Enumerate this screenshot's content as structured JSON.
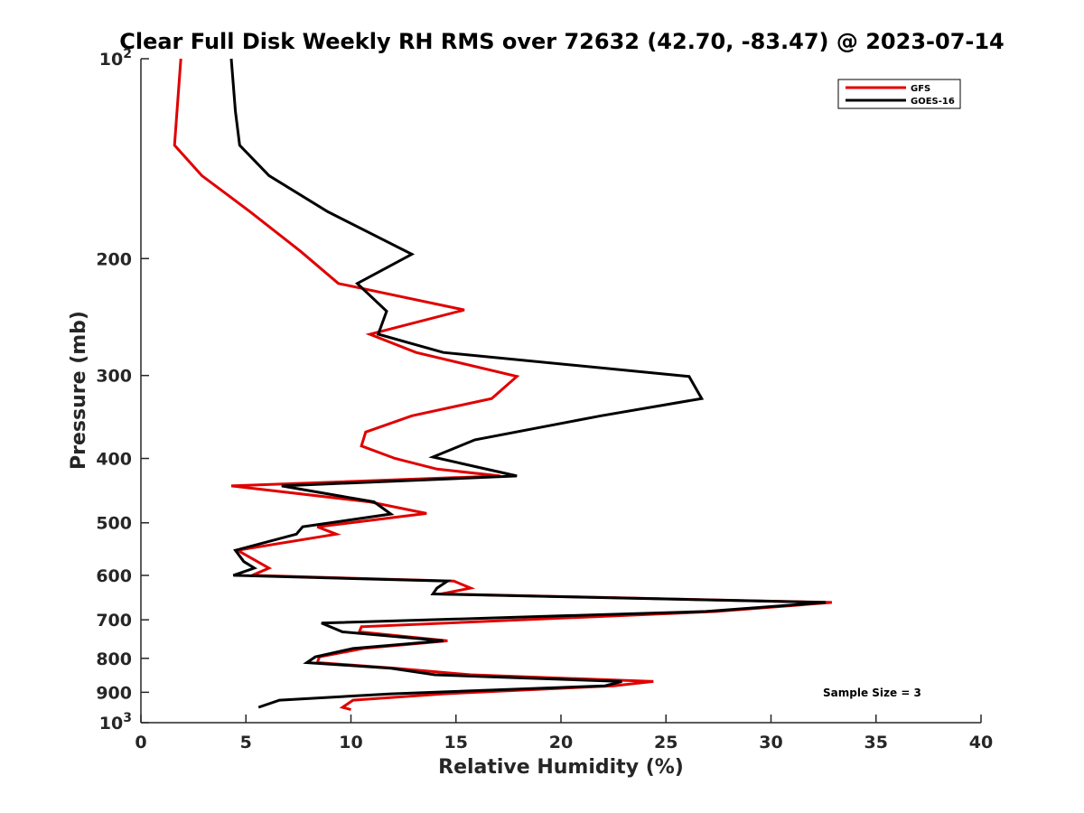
{
  "chart_data": {
    "type": "line",
    "title": "Clear Full Disk Weekly RH RMS over 72632 (42.70, -83.47) @ 2023-07-14",
    "xlabel": "Relative Humidity (%)",
    "ylabel": "Pressure (mb)",
    "xlim": [
      0,
      40
    ],
    "ylim": [
      100,
      1000
    ],
    "y_scale": "log",
    "y_reversed": true,
    "grid": false,
    "legend_position": "top-right",
    "x_ticks": [
      "0",
      "5",
      "10",
      "15",
      "20",
      "25",
      "30",
      "35",
      "40"
    ],
    "y_ticks": [
      {
        "value": 100,
        "base": "10",
        "exp": "2"
      },
      {
        "value": 200,
        "label": "200"
      },
      {
        "value": 300,
        "label": "300"
      },
      {
        "value": 400,
        "label": "400"
      },
      {
        "value": 500,
        "label": "500"
      },
      {
        "value": 600,
        "label": "600"
      },
      {
        "value": 700,
        "label": "700"
      },
      {
        "value": 800,
        "label": "800"
      },
      {
        "value": 900,
        "label": "900"
      },
      {
        "value": 1000,
        "base": "10",
        "exp": "3"
      }
    ],
    "series": [
      {
        "name": "GFS",
        "color": "#e00000",
        "points": [
          [
            1.9,
            100
          ],
          [
            1.6,
            135
          ],
          [
            2.9,
            150
          ],
          [
            5.2,
            170
          ],
          [
            7.6,
            195
          ],
          [
            9.4,
            218
          ],
          [
            15.4,
            239
          ],
          [
            10.9,
            260
          ],
          [
            13.1,
            277
          ],
          [
            17.9,
            301
          ],
          [
            16.7,
            325
          ],
          [
            12.9,
            345
          ],
          [
            10.7,
            365
          ],
          [
            10.5,
            383
          ],
          [
            12.1,
            400
          ],
          [
            14.1,
            415
          ],
          [
            17.1,
            425
          ],
          [
            4.3,
            440
          ],
          [
            10.9,
            465
          ],
          [
            13.6,
            484
          ],
          [
            8.4,
            507
          ],
          [
            9.3,
            520
          ],
          [
            4.6,
            550
          ],
          [
            6.1,
            585
          ],
          [
            5.3,
            600
          ],
          [
            14.9,
            612
          ],
          [
            15.7,
            627
          ],
          [
            14.3,
            640
          ],
          [
            32.9,
            659
          ],
          [
            27.4,
            680
          ],
          [
            10.5,
            717
          ],
          [
            10.4,
            730
          ],
          [
            14.6,
            753
          ],
          [
            10.6,
            773
          ],
          [
            8.5,
            796
          ],
          [
            8.4,
            812
          ],
          [
            12.1,
            828
          ],
          [
            15.7,
            847
          ],
          [
            24.4,
            867
          ],
          [
            22.5,
            880
          ],
          [
            14.4,
            905
          ],
          [
            10.1,
            925
          ],
          [
            9.6,
            948
          ],
          [
            10.0,
            956
          ]
        ]
      },
      {
        "name": "GOES-16",
        "color": "#000000",
        "points": [
          [
            4.3,
            100
          ],
          [
            4.5,
            120
          ],
          [
            4.7,
            135
          ],
          [
            6.1,
            150
          ],
          [
            8.9,
            170
          ],
          [
            12.9,
            197
          ],
          [
            10.3,
            218
          ],
          [
            11.7,
            240
          ],
          [
            11.3,
            260
          ],
          [
            14.4,
            277
          ],
          [
            26.1,
            301
          ],
          [
            26.7,
            325
          ],
          [
            21.9,
            345
          ],
          [
            15.9,
            375
          ],
          [
            13.9,
            398
          ],
          [
            17.9,
            425
          ],
          [
            6.7,
            440
          ],
          [
            11.1,
            465
          ],
          [
            11.9,
            485
          ],
          [
            7.7,
            507
          ],
          [
            7.4,
            520
          ],
          [
            4.5,
            550
          ],
          [
            4.9,
            572
          ],
          [
            5.4,
            585
          ],
          [
            4.4,
            600
          ],
          [
            14.6,
            612
          ],
          [
            14.1,
            627
          ],
          [
            13.9,
            640
          ],
          [
            32.6,
            659
          ],
          [
            26.9,
            680
          ],
          [
            8.6,
            708
          ],
          [
            9.6,
            730
          ],
          [
            14.4,
            753
          ],
          [
            10.1,
            773
          ],
          [
            8.3,
            796
          ],
          [
            7.9,
            812
          ],
          [
            11.9,
            828
          ],
          [
            14.0,
            847
          ],
          [
            22.9,
            867
          ],
          [
            22.1,
            880
          ],
          [
            11.9,
            905
          ],
          [
            6.6,
            925
          ],
          [
            5.6,
            948
          ]
        ]
      }
    ],
    "legend": [
      "GFS",
      "GOES-16"
    ],
    "annotation": "Sample Size = 3"
  }
}
